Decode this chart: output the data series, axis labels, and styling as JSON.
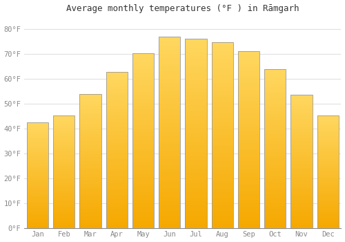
{
  "title": "Average monthly temperatures (°F ) in Rāmgarh",
  "months": [
    "Jan",
    "Feb",
    "Mar",
    "Apr",
    "May",
    "Jun",
    "Jul",
    "Aug",
    "Sep",
    "Oct",
    "Nov",
    "Dec"
  ],
  "values": [
    42.3,
    45.1,
    53.8,
    62.8,
    70.2,
    76.8,
    76.1,
    74.8,
    71.0,
    63.7,
    53.6,
    45.3
  ],
  "bar_color_bottom": "#F5A800",
  "bar_color_top": "#FFD760",
  "bar_edge_color": "#999999",
  "yticks": [
    0,
    10,
    20,
    30,
    40,
    50,
    60,
    70,
    80
  ],
  "ytick_labels": [
    "0°F",
    "10°F",
    "20°F",
    "30°F",
    "40°F",
    "50°F",
    "60°F",
    "70°F",
    "80°F"
  ],
  "ylim": [
    0,
    85
  ],
  "background_color": "#FFFFFF",
  "plot_bg_color": "#FFFFFF",
  "grid_color": "#E0E0E0",
  "title_fontsize": 9,
  "tick_fontsize": 7.5,
  "font_family": "monospace",
  "tick_color": "#888888",
  "title_color": "#333333"
}
